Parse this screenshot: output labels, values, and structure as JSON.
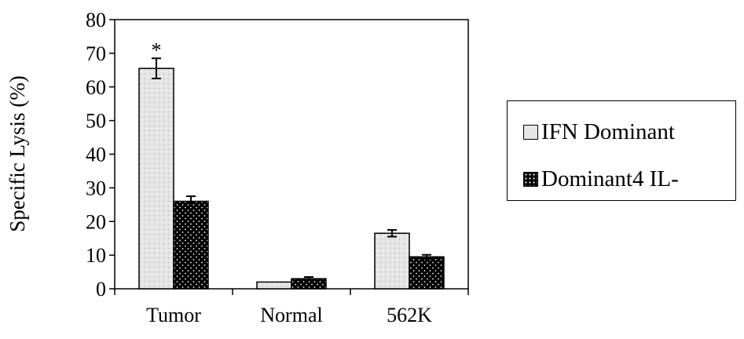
{
  "chart_data": {
    "type": "bar",
    "title": "",
    "ylabel": "Specific Lysis (%)",
    "xlabel": "",
    "categories": [
      "Tumor",
      "Normal",
      "562K"
    ],
    "ylim": [
      0,
      80
    ],
    "yticks": [
      "0",
      "10",
      "20",
      "30",
      "40",
      "50",
      "60",
      "70",
      "80"
    ],
    "grid": false,
    "legend_position": "right",
    "series": [
      {
        "name": "IFN Dominant",
        "values": [
          65.5,
          2,
          16.5
        ],
        "errors": [
          3.0,
          0,
          1.0
        ],
        "fill": "#e6e6e6",
        "pattern": "light-dots"
      },
      {
        "name": "Dominant4 IL-",
        "values": [
          26,
          3,
          9.5
        ],
        "errors": [
          1.5,
          0.5,
          0.6
        ],
        "fill": "#000000",
        "pattern": "dark-dots"
      }
    ],
    "annotations": [
      {
        "category": "Tumor",
        "series": "IFN Dominant",
        "text": "*"
      }
    ]
  }
}
